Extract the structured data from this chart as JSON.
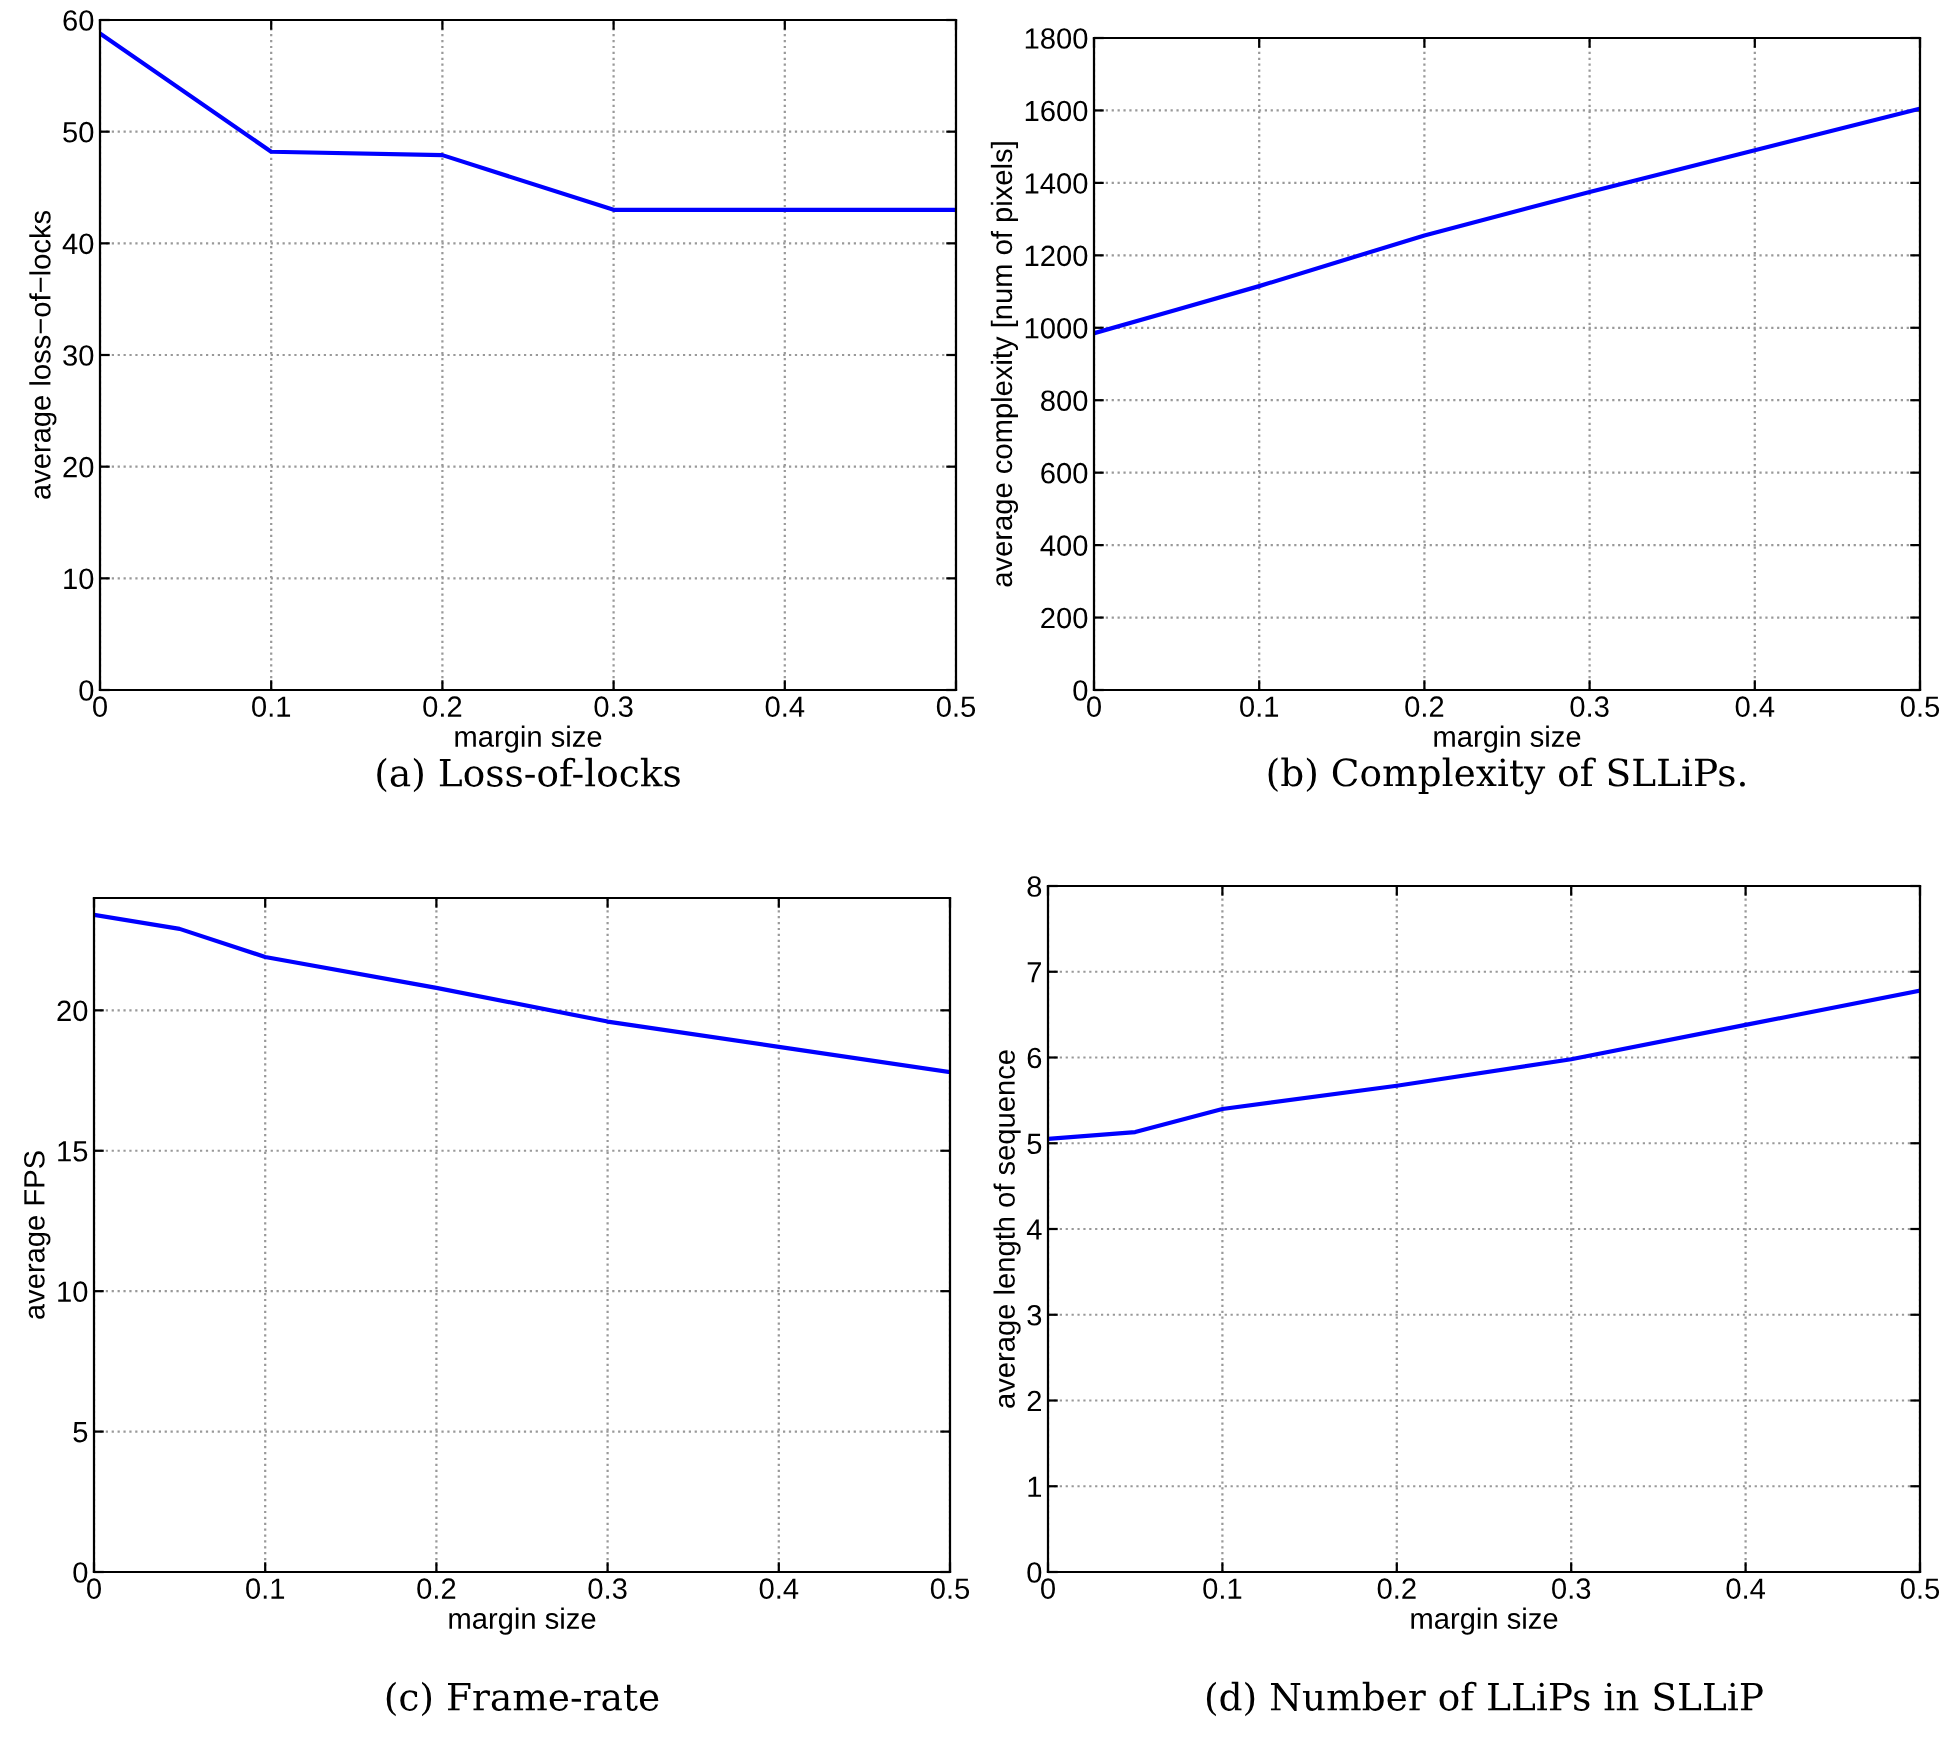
{
  "chart_data": [
    {
      "type": "line",
      "xlabel": "margin size",
      "ylabel": "average loss−of−locks",
      "annotations": [
        "(a) Loss-of-locks"
      ],
      "x": [
        0,
        0.1,
        0.2,
        0.3,
        0.4,
        0.5
      ],
      "series": [
        {
          "color": "#0000ff",
          "values": [
            58.8,
            48.2,
            47.9,
            43.0,
            43.0,
            43.0
          ]
        }
      ],
      "xlim": [
        0,
        0.5
      ],
      "xticks": [
        0,
        0.1,
        0.2,
        0.3,
        0.4,
        0.5
      ],
      "ylim": [
        0,
        60
      ],
      "yticks": [
        0,
        10,
        20,
        30,
        40,
        50,
        60
      ],
      "grid": true,
      "marker": "none",
      "line_style": "solid"
    },
    {
      "type": "line",
      "xlabel": "margin size",
      "ylabel": "average complexity [num of pixels]",
      "annotations": [
        "(b) Complexity of SLLiPs."
      ],
      "x": [
        0,
        0.05,
        0.1,
        0.2,
        0.3,
        0.4,
        0.5
      ],
      "series": [
        {
          "color": "#0000ff",
          "values": [
            985,
            1050,
            1115,
            1255,
            1375,
            1490,
            1605
          ]
        }
      ],
      "xlim": [
        0,
        0.5
      ],
      "xticks": [
        0,
        0.1,
        0.2,
        0.3,
        0.4,
        0.5
      ],
      "ylim": [
        0,
        1800
      ],
      "yticks": [
        0,
        200,
        400,
        600,
        800,
        1000,
        1200,
        1400,
        1600,
        1800
      ],
      "grid": true,
      "marker": "none",
      "line_style": "solid"
    },
    {
      "type": "line",
      "xlabel": "margin size",
      "ylabel": "average FPS",
      "annotations": [
        "(c) Frame-rate"
      ],
      "x": [
        0,
        0.05,
        0.1,
        0.2,
        0.3,
        0.4,
        0.5
      ],
      "series": [
        {
          "color": "#0000ff",
          "values": [
            23.4,
            22.9,
            21.9,
            20.8,
            19.6,
            18.7,
            17.8
          ]
        }
      ],
      "xlim": [
        0,
        0.5
      ],
      "xticks": [
        0,
        0.1,
        0.2,
        0.3,
        0.4,
        0.5
      ],
      "ylim": [
        0,
        24
      ],
      "yticks": [
        0,
        5,
        10,
        15,
        20
      ],
      "grid": true,
      "marker": "none",
      "line_style": "solid"
    },
    {
      "type": "line",
      "xlabel": "margin size",
      "ylabel": "average length of sequence",
      "annotations": [
        "(d) Number of LLiPs in SLLiP"
      ],
      "x": [
        0,
        0.05,
        0.1,
        0.2,
        0.3,
        0.4,
        0.5
      ],
      "series": [
        {
          "color": "#0000ff",
          "values": [
            5.05,
            5.13,
            5.4,
            5.67,
            5.98,
            6.38,
            6.78
          ]
        }
      ],
      "xlim": [
        0,
        0.5
      ],
      "xticks": [
        0,
        0.1,
        0.2,
        0.3,
        0.4,
        0.5
      ],
      "ylim": [
        0,
        8
      ],
      "yticks": [
        0,
        1,
        2,
        3,
        4,
        5,
        6,
        7,
        8
      ],
      "grid": true,
      "marker": "none",
      "line_style": "solid"
    }
  ]
}
